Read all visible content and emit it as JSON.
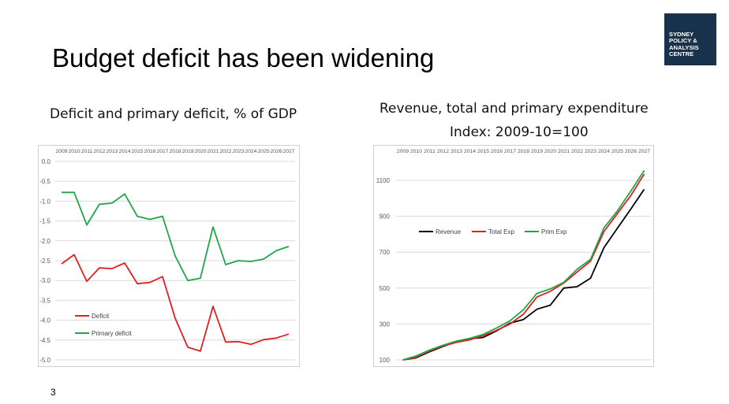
{
  "slide": {
    "title": "Budget deficit has been widening",
    "page_number": "3",
    "logo_lines": [
      "SYDNEY",
      "POLICY &",
      "ANALYSIS",
      "CENTRE"
    ]
  },
  "left": {
    "caption": "Deficit and primary deficit, % of GDP"
  },
  "right": {
    "caption_line1": "Revenue, total and primary expenditure",
    "caption_line2": "Index: 2009-10=100"
  },
  "chart_data": [
    {
      "type": "line",
      "title": "Deficit and primary deficit, % of GDP",
      "categories": [
        "2009",
        "2010",
        "2011",
        "2012",
        "2013",
        "2014",
        "2015",
        "2016",
        "2017",
        "2018",
        "2019",
        "2020",
        "2021",
        "2022",
        "2023",
        "2024",
        "2025",
        "2026",
        "2027"
      ],
      "yticks": [
        "0.0",
        "-0.5",
        "-1.0",
        "-1.5",
        "-2.0",
        "-2.5",
        "-3.0",
        "-3.5",
        "-4.0",
        "-4.5",
        "-5.0"
      ],
      "ylim": [
        -5.0,
        0.0
      ],
      "grid": true,
      "legend_position": "bottom-left",
      "series": [
        {
          "name": "Deficit",
          "color": "#e02020",
          "values": [
            -2.58,
            -2.35,
            -3.02,
            -2.68,
            -2.7,
            -2.56,
            -3.08,
            -3.05,
            -2.9,
            -3.95,
            -4.68,
            -4.78,
            -3.65,
            -4.55,
            -4.54,
            -4.61,
            -4.49,
            -4.45,
            -4.35
          ]
        },
        {
          "name": "Primary deficit",
          "color": "#1fa64a",
          "values": [
            -0.78,
            -0.78,
            -1.6,
            -1.08,
            -1.05,
            -0.82,
            -1.38,
            -1.46,
            -1.38,
            -2.38,
            -3.0,
            -2.94,
            -1.65,
            -2.6,
            -2.5,
            -2.52,
            -2.46,
            -2.25,
            -2.14
          ]
        }
      ]
    },
    {
      "type": "line",
      "title": "Revenue, total and primary expenditure",
      "subtitle": "Index: 2009-10=100",
      "categories": [
        "2009",
        "2010",
        "2011",
        "2012",
        "2013",
        "2014",
        "2015",
        "2016",
        "2017",
        "2018",
        "2019",
        "2020",
        "2021",
        "2022",
        "2023",
        "2024",
        "2025",
        "2026",
        "2027"
      ],
      "yticks": [
        "100",
        "300",
        "500",
        "700",
        "900",
        "1100"
      ],
      "ylim": [
        100,
        1150
      ],
      "grid": true,
      "legend_position": "top-left",
      "series": [
        {
          "name": "Revenue",
          "color": "#000000",
          "values": [
            100,
            112,
            145,
            175,
            200,
            218,
            225,
            262,
            305,
            325,
            382,
            405,
            500,
            508,
            555,
            725,
            833,
            940,
            1050
          ]
        },
        {
          "name": "Total Exp",
          "color": "#e02020",
          "values": [
            100,
            115,
            150,
            178,
            198,
            212,
            235,
            265,
            300,
            355,
            450,
            482,
            528,
            590,
            650,
            815,
            915,
            1015,
            1135
          ]
        },
        {
          "name": "Prim Exp",
          "color": "#1fa64a",
          "values": [
            100,
            122,
            155,
            182,
            205,
            220,
            242,
            278,
            318,
            380,
            470,
            495,
            532,
            605,
            660,
            835,
            930,
            1040,
            1155
          ]
        }
      ]
    }
  ]
}
